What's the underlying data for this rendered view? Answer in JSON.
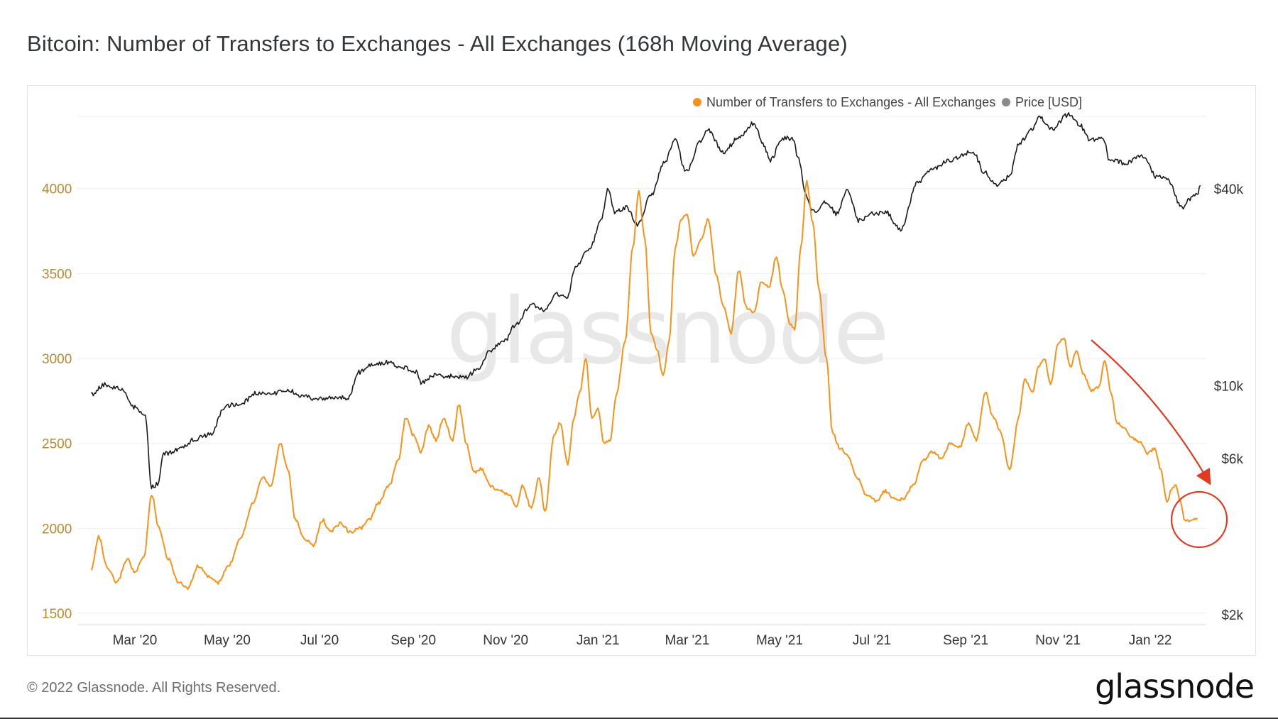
{
  "title": "Bitcoin: Number of Transfers to Exchanges - All Exchanges (168h Moving Average)",
  "footer": "© 2022 Glassnode. All Rights Reserved.",
  "brand": "glassnode",
  "watermark": "glassnode",
  "colors": {
    "transfers": "#f7931a",
    "transfers_axis": "#b68a32",
    "price": "#1a1a1a",
    "annotation": "#e03a22",
    "grid": "#eceef0"
  },
  "chart_data": {
    "type": "line",
    "title": "Bitcoin: Number of Transfers to Exchanges - All Exchanges (168h Moving Average)",
    "legend_position": "top-right",
    "grid": true,
    "x_ticks": [
      "Mar '20",
      "May '20",
      "Jul '20",
      "Sep '20",
      "Nov '20",
      "Jan '21",
      "Mar '21",
      "May '21",
      "Jul '21",
      "Sep '21",
      "Nov '21",
      "Jan '22"
    ],
    "left_axis": {
      "ticks": [
        "1500",
        "2000",
        "2500",
        "3000",
        "3500",
        "4000"
      ],
      "range": [
        1450,
        4500
      ]
    },
    "right_axis": {
      "scale": "log",
      "ticks": [
        "$2k",
        "$6k",
        "$10k",
        "$40k"
      ],
      "tick_values": [
        2000,
        6000,
        10000,
        40000
      ]
    },
    "series": [
      {
        "name": "Number of Transfers to Exchanges - All Exchanges",
        "axis": "left",
        "points": [
          [
            "2020-02-01",
            1750
          ],
          [
            "2020-02-06",
            1950
          ],
          [
            "2020-02-12",
            1760
          ],
          [
            "2020-02-18",
            1680
          ],
          [
            "2020-02-25",
            1820
          ],
          [
            "2020-03-01",
            1740
          ],
          [
            "2020-03-07",
            1830
          ],
          [
            "2020-03-12",
            2200
          ],
          [
            "2020-03-17",
            2000
          ],
          [
            "2020-03-23",
            1820
          ],
          [
            "2020-03-30",
            1680
          ],
          [
            "2020-04-05",
            1650
          ],
          [
            "2020-04-12",
            1780
          ],
          [
            "2020-04-18",
            1720
          ],
          [
            "2020-04-25",
            1680
          ],
          [
            "2020-05-02",
            1780
          ],
          [
            "2020-05-10",
            1950
          ],
          [
            "2020-05-18",
            2150
          ],
          [
            "2020-05-24",
            2300
          ],
          [
            "2020-05-30",
            2250
          ],
          [
            "2020-06-05",
            2500
          ],
          [
            "2020-06-10",
            2350
          ],
          [
            "2020-06-15",
            2050
          ],
          [
            "2020-06-21",
            1940
          ],
          [
            "2020-06-27",
            1900
          ],
          [
            "2020-07-03",
            2050
          ],
          [
            "2020-07-08",
            1980
          ],
          [
            "2020-07-15",
            2030
          ],
          [
            "2020-07-21",
            1980
          ],
          [
            "2020-07-28",
            2000
          ],
          [
            "2020-08-03",
            2050
          ],
          [
            "2020-08-09",
            2150
          ],
          [
            "2020-08-16",
            2250
          ],
          [
            "2020-08-22",
            2400
          ],
          [
            "2020-08-27",
            2650
          ],
          [
            "2020-09-01",
            2550
          ],
          [
            "2020-09-06",
            2450
          ],
          [
            "2020-09-11",
            2600
          ],
          [
            "2020-09-16",
            2520
          ],
          [
            "2020-09-21",
            2650
          ],
          [
            "2020-09-27",
            2520
          ],
          [
            "2020-10-01",
            2730
          ],
          [
            "2020-10-06",
            2500
          ],
          [
            "2020-10-11",
            2330
          ],
          [
            "2020-10-16",
            2350
          ],
          [
            "2020-10-22",
            2250
          ],
          [
            "2020-10-28",
            2220
          ],
          [
            "2020-11-03",
            2200
          ],
          [
            "2020-11-08",
            2130
          ],
          [
            "2020-11-12",
            2250
          ],
          [
            "2020-11-18",
            2120
          ],
          [
            "2020-11-23",
            2300
          ],
          [
            "2020-11-27",
            2100
          ],
          [
            "2020-12-03",
            2550
          ],
          [
            "2020-12-07",
            2620
          ],
          [
            "2020-12-12",
            2380
          ],
          [
            "2020-12-16",
            2650
          ],
          [
            "2020-12-20",
            2800
          ],
          [
            "2020-12-24",
            3000
          ],
          [
            "2020-12-28",
            2650
          ],
          [
            "2021-01-01",
            2700
          ],
          [
            "2021-01-05",
            2500
          ],
          [
            "2021-01-09",
            2520
          ],
          [
            "2021-01-13",
            2780
          ],
          [
            "2021-01-19",
            3100
          ],
          [
            "2021-01-24",
            3650
          ],
          [
            "2021-01-28",
            3980
          ],
          [
            "2021-02-01",
            3700
          ],
          [
            "2021-02-05",
            3150
          ],
          [
            "2021-02-09",
            3050
          ],
          [
            "2021-02-13",
            2900
          ],
          [
            "2021-02-17",
            3100
          ],
          [
            "2021-02-21",
            3650
          ],
          [
            "2021-02-25",
            3820
          ],
          [
            "2021-03-01",
            3850
          ],
          [
            "2021-03-05",
            3600
          ],
          [
            "2021-03-10",
            3700
          ],
          [
            "2021-03-15",
            3820
          ],
          [
            "2021-03-20",
            3500
          ],
          [
            "2021-03-25",
            3300
          ],
          [
            "2021-03-30",
            3150
          ],
          [
            "2021-04-04",
            3520
          ],
          [
            "2021-04-09",
            3300
          ],
          [
            "2021-04-14",
            3270
          ],
          [
            "2021-04-19",
            3450
          ],
          [
            "2021-04-24",
            3420
          ],
          [
            "2021-04-29",
            3600
          ],
          [
            "2021-05-03",
            3400
          ],
          [
            "2021-05-08",
            3200
          ],
          [
            "2021-05-11",
            3170
          ],
          [
            "2021-05-15",
            3650
          ],
          [
            "2021-05-19",
            4040
          ],
          [
            "2021-05-23",
            3800
          ],
          [
            "2021-05-27",
            3400
          ],
          [
            "2021-06-01",
            3000
          ],
          [
            "2021-06-05",
            2560
          ],
          [
            "2021-06-10",
            2470
          ],
          [
            "2021-06-15",
            2430
          ],
          [
            "2021-06-21",
            2300
          ],
          [
            "2021-06-27",
            2200
          ],
          [
            "2021-07-04",
            2160
          ],
          [
            "2021-07-10",
            2220
          ],
          [
            "2021-07-16",
            2170
          ],
          [
            "2021-07-22",
            2170
          ],
          [
            "2021-07-28",
            2250
          ],
          [
            "2021-08-04",
            2400
          ],
          [
            "2021-08-10",
            2450
          ],
          [
            "2021-08-16",
            2410
          ],
          [
            "2021-08-22",
            2500
          ],
          [
            "2021-08-28",
            2480
          ],
          [
            "2021-09-03",
            2620
          ],
          [
            "2021-09-08",
            2520
          ],
          [
            "2021-09-14",
            2800
          ],
          [
            "2021-09-19",
            2660
          ],
          [
            "2021-09-24",
            2570
          ],
          [
            "2021-09-30",
            2350
          ],
          [
            "2021-10-06",
            2650
          ],
          [
            "2021-10-10",
            2880
          ],
          [
            "2021-10-15",
            2800
          ],
          [
            "2021-10-19",
            2950
          ],
          [
            "2021-10-23",
            3000
          ],
          [
            "2021-10-27",
            2850
          ],
          [
            "2021-11-01",
            3080
          ],
          [
            "2021-11-05",
            3120
          ],
          [
            "2021-11-09",
            2950
          ],
          [
            "2021-11-13",
            3040
          ],
          [
            "2021-11-18",
            2900
          ],
          [
            "2021-11-23",
            2810
          ],
          [
            "2021-11-28",
            2830
          ],
          [
            "2021-12-02",
            2990
          ],
          [
            "2021-12-06",
            2800
          ],
          [
            "2021-12-10",
            2620
          ],
          [
            "2021-12-15",
            2590
          ],
          [
            "2021-12-20",
            2530
          ],
          [
            "2021-12-25",
            2510
          ],
          [
            "2021-12-30",
            2440
          ],
          [
            "2022-01-04",
            2470
          ],
          [
            "2022-01-08",
            2340
          ],
          [
            "2022-01-12",
            2150
          ],
          [
            "2022-01-15",
            2230
          ],
          [
            "2022-01-18",
            2250
          ],
          [
            "2022-01-21",
            2150
          ],
          [
            "2022-01-24",
            2040
          ],
          [
            "2022-01-28",
            2050
          ],
          [
            "2022-02-01",
            2060
          ]
        ]
      },
      {
        "name": "Price [USD]",
        "axis": "right",
        "points": [
          [
            "2020-02-01",
            9400
          ],
          [
            "2020-02-10",
            10100
          ],
          [
            "2020-02-20",
            9800
          ],
          [
            "2020-03-01",
            8600
          ],
          [
            "2020-03-08",
            8000
          ],
          [
            "2020-03-12",
            4900
          ],
          [
            "2020-03-16",
            5000
          ],
          [
            "2020-03-20",
            6200
          ],
          [
            "2020-03-31",
            6400
          ],
          [
            "2020-04-10",
            6900
          ],
          [
            "2020-04-20",
            7100
          ],
          [
            "2020-04-30",
            8700
          ],
          [
            "2020-05-10",
            8800
          ],
          [
            "2020-05-20",
            9500
          ],
          [
            "2020-05-31",
            9500
          ],
          [
            "2020-06-10",
            9700
          ],
          [
            "2020-06-20",
            9300
          ],
          [
            "2020-06-30",
            9100
          ],
          [
            "2020-07-10",
            9200
          ],
          [
            "2020-07-20",
            9200
          ],
          [
            "2020-07-27",
            11000
          ],
          [
            "2020-08-05",
            11600
          ],
          [
            "2020-08-15",
            11800
          ],
          [
            "2020-08-25",
            11400
          ],
          [
            "2020-09-03",
            11000
          ],
          [
            "2020-09-06",
            10200
          ],
          [
            "2020-09-15",
            10800
          ],
          [
            "2020-09-25",
            10700
          ],
          [
            "2020-10-05",
            10600
          ],
          [
            "2020-10-15",
            11400
          ],
          [
            "2020-10-21",
            12800
          ],
          [
            "2020-10-31",
            13700
          ],
          [
            "2020-11-08",
            15400
          ],
          [
            "2020-11-18",
            17800
          ],
          [
            "2020-11-26",
            17000
          ],
          [
            "2020-12-05",
            19000
          ],
          [
            "2020-12-12",
            18800
          ],
          [
            "2020-12-17",
            23000
          ],
          [
            "2020-12-27",
            26500
          ],
          [
            "2021-01-03",
            32000
          ],
          [
            "2021-01-08",
            40000
          ],
          [
            "2021-01-12",
            34000
          ],
          [
            "2021-01-20",
            35000
          ],
          [
            "2021-01-27",
            31000
          ],
          [
            "2021-02-05",
            38000
          ],
          [
            "2021-02-14",
            48000
          ],
          [
            "2021-02-21",
            57000
          ],
          [
            "2021-02-28",
            45000
          ],
          [
            "2021-03-10",
            56000
          ],
          [
            "2021-03-14",
            61000
          ],
          [
            "2021-03-25",
            52000
          ],
          [
            "2021-04-05",
            58000
          ],
          [
            "2021-04-14",
            63500
          ],
          [
            "2021-04-20",
            55000
          ],
          [
            "2021-04-25",
            49000
          ],
          [
            "2021-05-03",
            57000
          ],
          [
            "2021-05-10",
            57000
          ],
          [
            "2021-05-13",
            50000
          ],
          [
            "2021-05-19",
            38000
          ],
          [
            "2021-05-23",
            34000
          ],
          [
            "2021-06-01",
            36500
          ],
          [
            "2021-06-08",
            33500
          ],
          [
            "2021-06-15",
            40000
          ],
          [
            "2021-06-22",
            32000
          ],
          [
            "2021-07-01",
            33500
          ],
          [
            "2021-07-10",
            34000
          ],
          [
            "2021-07-20",
            30000
          ],
          [
            "2021-07-31",
            41500
          ],
          [
            "2021-08-10",
            46000
          ],
          [
            "2021-08-22",
            49000
          ],
          [
            "2021-09-06",
            52000
          ],
          [
            "2021-09-13",
            45000
          ],
          [
            "2021-09-21",
            41000
          ],
          [
            "2021-09-30",
            43500
          ],
          [
            "2021-10-06",
            55000
          ],
          [
            "2021-10-15",
            61000
          ],
          [
            "2021-10-20",
            66000
          ],
          [
            "2021-10-28",
            61000
          ],
          [
            "2021-11-08",
            67500
          ],
          [
            "2021-11-15",
            63000
          ],
          [
            "2021-11-22",
            56500
          ],
          [
            "2021-12-01",
            57000
          ],
          [
            "2021-12-05",
            49000
          ],
          [
            "2021-12-15",
            48000
          ],
          [
            "2021-12-27",
            50500
          ],
          [
            "2022-01-05",
            43500
          ],
          [
            "2022-01-12",
            43000
          ],
          [
            "2022-01-22",
            35000
          ],
          [
            "2022-01-28",
            37500
          ],
          [
            "2022-02-01",
            38500
          ],
          [
            "2022-02-03",
            41000
          ]
        ]
      }
    ]
  }
}
